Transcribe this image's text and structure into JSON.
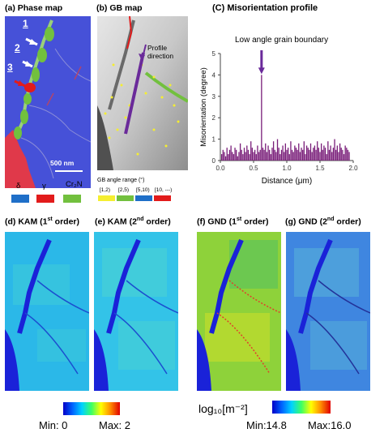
{
  "panels": {
    "a": {
      "label": "(a) Phase map",
      "scalebar": "500 nm",
      "markers": [
        "1",
        "2",
        "3"
      ],
      "phases": [
        {
          "name": "δ",
          "color": "#1f6fc8"
        },
        {
          "name": "γ",
          "color": "#e21b1b"
        },
        {
          "name": "Cr₂N",
          "color": "#72c03e"
        }
      ]
    },
    "b": {
      "label": "(b) GB map",
      "annotation": "Profile\ndirection",
      "legend_title": "GB angle range (°)",
      "ranges": [
        {
          "name": "[1,2)",
          "color": "#f5ee30"
        },
        {
          "name": "[2,5)",
          "color": "#72c03e"
        },
        {
          "name": "[5,10)",
          "color": "#1f6fc8"
        },
        {
          "name": "[10, ---)",
          "color": "#e21b1b"
        }
      ]
    },
    "c": {
      "label": "(C) Misorientation profile"
    },
    "d": {
      "prefix": "(d) KAM (1",
      "sup": "st",
      "suffix": " order)"
    },
    "e": {
      "prefix": "(e) KAM (2",
      "sup": "nd",
      "suffix": " order)"
    },
    "f": {
      "prefix": "(f) GND (1",
      "sup": "st",
      "suffix": " order)"
    },
    "g": {
      "prefix": "(g) GND (2",
      "sup": "nd",
      "suffix": " order)"
    }
  },
  "kam_colorbar": {
    "min_label": "Min: 0",
    "max_label": "Max: 2"
  },
  "gnd_colorbar": {
    "unit_label": "log₁₀[m⁻²]",
    "min_label": "Min:14.8",
    "max_label": "Max:16.0"
  },
  "chart_data": {
    "type": "bar",
    "title": "Misorientation profile",
    "annotation": "Low angle grain boundary",
    "xlabel": "Distance (μm)",
    "ylabel": "Misorientation (degree)",
    "xlim": [
      0.0,
      2.0
    ],
    "ylim": [
      0,
      5
    ],
    "xticks": [
      "0.0",
      "0.5",
      "1.0",
      "1.5",
      "2.0"
    ],
    "yticks": [
      "0",
      "1",
      "2",
      "3",
      "4",
      "5"
    ],
    "bar_color": "#7a1f7a",
    "x": [
      0.02,
      0.04,
      0.06,
      0.08,
      0.1,
      0.12,
      0.14,
      0.16,
      0.18,
      0.2,
      0.22,
      0.24,
      0.26,
      0.28,
      0.3,
      0.32,
      0.34,
      0.36,
      0.38,
      0.4,
      0.42,
      0.44,
      0.46,
      0.48,
      0.5,
      0.52,
      0.54,
      0.56,
      0.58,
      0.6,
      0.62,
      0.64,
      0.66,
      0.68,
      0.7,
      0.72,
      0.74,
      0.76,
      0.78,
      0.8,
      0.82,
      0.84,
      0.86,
      0.88,
      0.9,
      0.92,
      0.94,
      0.96,
      0.98,
      1.0,
      1.02,
      1.04,
      1.06,
      1.08,
      1.1,
      1.12,
      1.14,
      1.16,
      1.18,
      1.2,
      1.22,
      1.24,
      1.26,
      1.28,
      1.3,
      1.32,
      1.34,
      1.36,
      1.38,
      1.4,
      1.42,
      1.44,
      1.46,
      1.48,
      1.5,
      1.52,
      1.54,
      1.56,
      1.58,
      1.6,
      1.62,
      1.64,
      1.66,
      1.68,
      1.7,
      1.72,
      1.74,
      1.76,
      1.78,
      1.8,
      1.82,
      1.84,
      1.86,
      1.88,
      1.9,
      1.92,
      1.94
    ],
    "values": [
      0.3,
      0.5,
      0.4,
      0.2,
      0.6,
      0.3,
      0.5,
      0.7,
      0.4,
      0.3,
      0.6,
      0.5,
      0.2,
      0.4,
      0.8,
      0.5,
      0.3,
      0.6,
      0.4,
      0.7,
      0.5,
      0.3,
      0.9,
      0.6,
      0.4,
      0.5,
      0.3,
      0.7,
      0.4,
      0.5,
      4.0,
      0.6,
      0.5,
      0.8,
      0.4,
      0.7,
      0.5,
      0.3,
      0.6,
      0.9,
      0.5,
      0.4,
      1.0,
      0.6,
      0.3,
      0.5,
      0.7,
      0.4,
      0.8,
      0.5,
      0.6,
      0.3,
      0.9,
      0.5,
      0.4,
      0.7,
      0.6,
      0.5,
      0.8,
      0.4,
      0.6,
      0.5,
      0.9,
      0.3,
      0.7,
      0.6,
      0.5,
      0.8,
      0.4,
      0.6,
      0.7,
      0.5,
      0.9,
      0.6,
      0.4,
      0.8,
      0.5,
      0.7,
      0.6,
      0.3,
      0.9,
      0.5,
      0.7,
      0.4,
      0.6,
      1.0,
      0.5,
      0.7,
      0.4,
      0.8,
      0.6,
      0.5,
      0.3,
      0.7,
      0.6,
      0.5,
      0.4
    ]
  }
}
